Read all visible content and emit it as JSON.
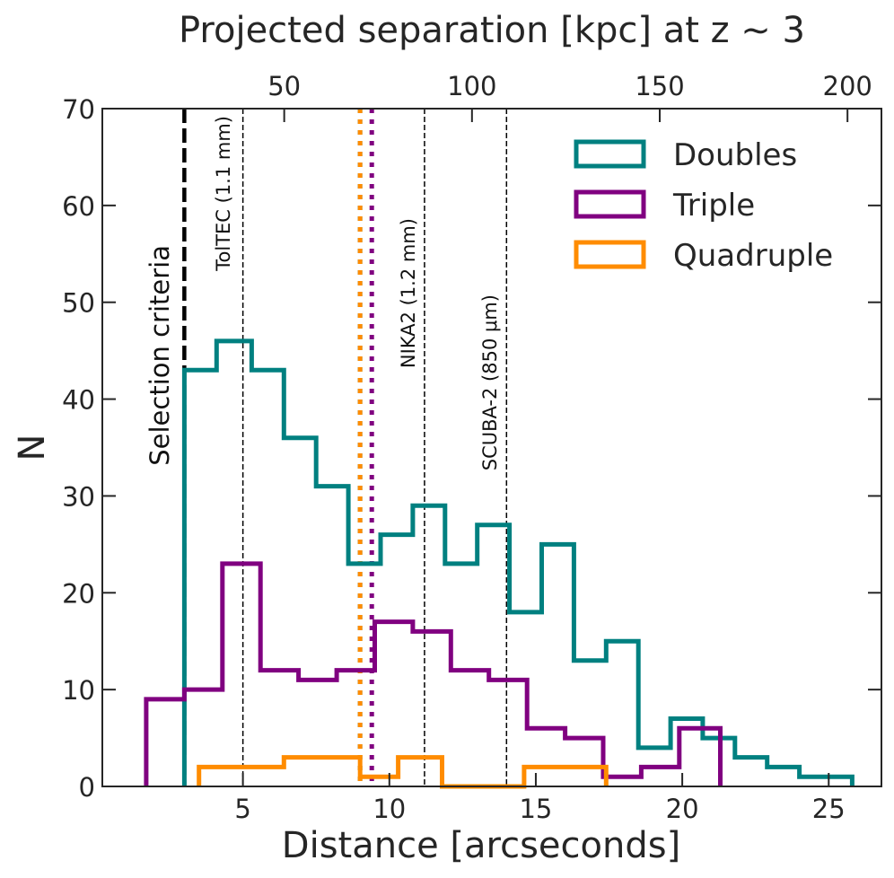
{
  "chart_data": {
    "type": "histogram",
    "title": "",
    "xlabel": "Distance [arcseconds]",
    "ylabel": "N",
    "xlim": [
      0.2,
      26.8
    ],
    "ylim": [
      0,
      70
    ],
    "xticks": [
      5,
      10,
      15,
      20,
      25
    ],
    "yticks": [
      0,
      10,
      20,
      30,
      40,
      50,
      60,
      70
    ],
    "top_axis": {
      "label": "Projected separation [kpc] at z ∼ 3",
      "ticks": [
        50,
        100,
        150,
        200
      ],
      "kpc_per_arcsec": 7.8
    },
    "series": [
      {
        "name": "Doubles",
        "color": "#008080",
        "edges": [
          3.0,
          4.1,
          5.3,
          6.4,
          7.5,
          8.6,
          9.0,
          9.7,
          10.8,
          11.9,
          13.0,
          14.1,
          15.2,
          16.3,
          17.4,
          18.5,
          19.6,
          20.7,
          21.8,
          22.9,
          24.0,
          25.1,
          25.8
        ],
        "counts": [
          43,
          46,
          43,
          36,
          31,
          23,
          23,
          26,
          29,
          23,
          27,
          18,
          25,
          13,
          15,
          4,
          7,
          5,
          3,
          2,
          1,
          1
        ]
      },
      {
        "name": "Triple",
        "color": "#800080",
        "edges": [
          1.7,
          3.0,
          4.3,
          5.6,
          6.9,
          8.2,
          9.5,
          10.8,
          12.1,
          13.4,
          14.7,
          16.0,
          17.3,
          18.6,
          19.9,
          21.3
        ],
        "counts": [
          9,
          10,
          23,
          12,
          11,
          12,
          17,
          16,
          12,
          11,
          6,
          5,
          1,
          2,
          6
        ]
      },
      {
        "name": "Quadruple",
        "color": "#ff8c00",
        "edges": [
          3.5,
          6.4,
          9.0,
          10.3,
          11.8,
          14.6,
          17.4
        ],
        "counts": [
          2,
          3,
          1,
          3,
          0,
          2
        ]
      }
    ],
    "vertical_lines": [
      {
        "label": "Selection criteria",
        "x": 3.0,
        "style": "dashed-thick",
        "color": "#000000"
      },
      {
        "label": "TolTEC (1.1 mm)",
        "x": 5.0,
        "style": "dashed-thin",
        "color": "#000000"
      },
      {
        "label": "NIKA2 (1.2 mm)",
        "x": 11.2,
        "style": "dashed-thin",
        "color": "#000000"
      },
      {
        "label": "SCUBA-2 (850 μm)",
        "x": 14.0,
        "style": "dashed-thin",
        "color": "#000000"
      },
      {
        "label": "",
        "x": 9.0,
        "style": "dotted-median",
        "color": "#008080"
      },
      {
        "label": "",
        "x": 9.0,
        "style": "dotted-median",
        "color": "#ff8c00"
      },
      {
        "label": "",
        "x": 9.4,
        "style": "dotted-median",
        "color": "#800080"
      }
    ],
    "legend": {
      "position": "top-right",
      "entries": [
        "Doubles",
        "Triple",
        "Quadruple"
      ]
    }
  }
}
